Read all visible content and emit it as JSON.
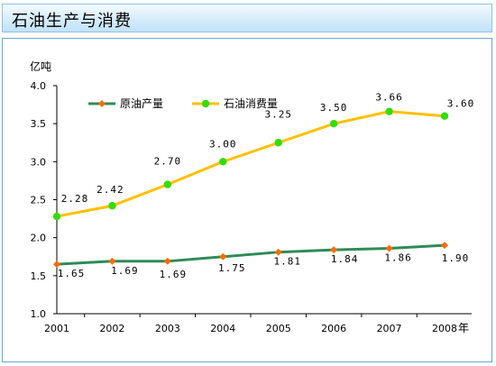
{
  "header": {
    "title": "石油生产与消费"
  },
  "chart_data": {
    "type": "line",
    "title": "",
    "ylabel": "亿吨",
    "xlabel": "年",
    "ylim": [
      1.0,
      4.0
    ],
    "yticks": [
      "1.0",
      "1.5",
      "2.0",
      "2.5",
      "3.0",
      "3.5",
      "4.0"
    ],
    "categories": [
      "2001",
      "2002",
      "2003",
      "2004",
      "2005",
      "2006",
      "2007",
      "2008"
    ],
    "legend_position": "top-left",
    "grid": false,
    "series": [
      {
        "name": "原油产量",
        "color": "#2e8b57",
        "marker_color": "#ff6a00",
        "marker": "diamond",
        "values": [
          1.65,
          1.69,
          1.69,
          1.75,
          1.81,
          1.84,
          1.86,
          1.9
        ],
        "labels": [
          "1.65",
          "1.69",
          "1.69",
          "1.75",
          "1.81",
          "1.84",
          "1.86",
          "1.90"
        ]
      },
      {
        "name": "石油消费量",
        "color": "#ffc000",
        "marker_color": "#33dd00",
        "marker": "circle",
        "values": [
          2.28,
          2.42,
          2.7,
          3.0,
          3.25,
          3.5,
          3.66,
          3.6
        ],
        "labels": [
          "2.28",
          "2.42",
          "2.70",
          "3.00",
          "3.25",
          "3.50",
          "3.66",
          "3.60"
        ]
      }
    ]
  }
}
